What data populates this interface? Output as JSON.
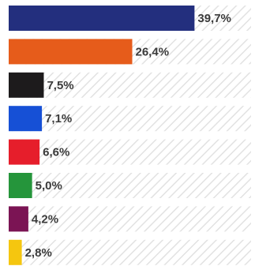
{
  "chart_data": {
    "type": "bar",
    "orientation": "horizontal",
    "categories": [
      "",
      "",
      "",
      "",
      "",
      "",
      "",
      ""
    ],
    "values": [
      39.7,
      26.4,
      7.5,
      7.1,
      6.6,
      5.0,
      4.2,
      2.8
    ],
    "value_labels": [
      "39,7%",
      "26,4%",
      "7,5%",
      "7,1%",
      "6,6%",
      "5,0%",
      "4,2%",
      "2,8%"
    ],
    "colors": [
      "#232f7e",
      "#e65c1b",
      "#1d1b1c",
      "#1650d6",
      "#e61e2b",
      "#25953b",
      "#7b1454",
      "#f5c60f"
    ],
    "xlim": [
      0,
      42
    ],
    "title": "",
    "xlabel": "",
    "ylabel": "",
    "grid": false,
    "background_pattern": "light-diagonal-hatch"
  }
}
